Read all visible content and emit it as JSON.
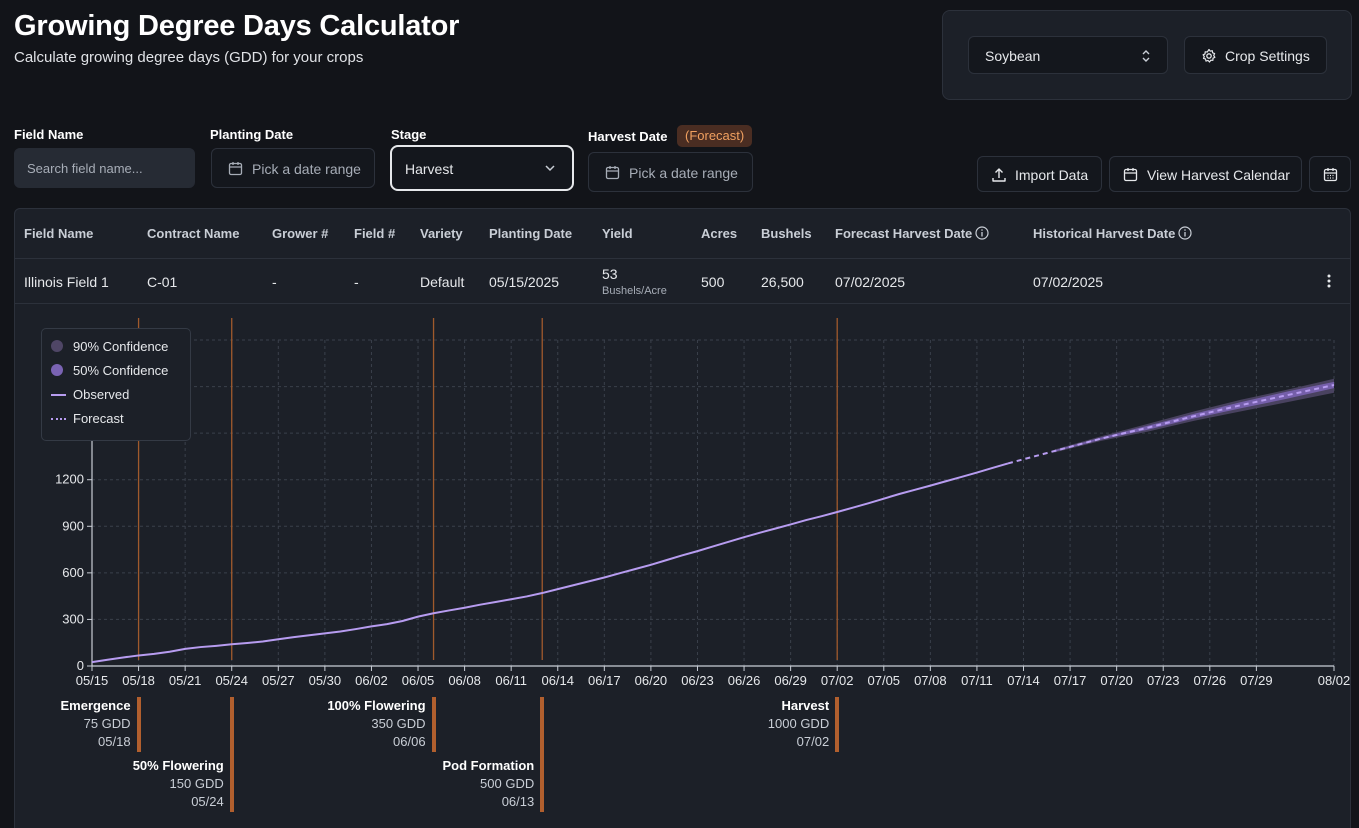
{
  "header": {
    "title": "Growing Degree Days Calculator",
    "subtitle": "Calculate growing degree days (GDD) for your crops"
  },
  "top_panel": {
    "crop": "Soybean",
    "crop_settings_label": "Crop Settings"
  },
  "filters": {
    "field_name_label": "Field Name",
    "field_name_placeholder": "Search field name...",
    "planting_date_label": "Planting Date",
    "planting_date_placeholder": "Pick a date range",
    "stage_label": "Stage",
    "stage_value": "Harvest",
    "harvest_date_label": "Harvest Date",
    "harvest_badge": "(Forecast)",
    "harvest_date_placeholder": "Pick a date range"
  },
  "actions": {
    "import_label": "Import Data",
    "calendar_label": "View Harvest Calendar"
  },
  "table": {
    "headers": [
      "Field Name",
      "Contract Name",
      "Grower #",
      "Field #",
      "Variety",
      "Planting Date",
      "Yield",
      "Acres",
      "Bushels",
      "Forecast Harvest Date",
      "Historical Harvest Date"
    ],
    "row": {
      "field_name": "Illinois Field 1",
      "contract_name": "C-01",
      "grower": "-",
      "field": "-",
      "variety": "Default",
      "planting_date": "05/15/2025",
      "yield_value": "53",
      "yield_unit": "Bushels/Acre",
      "acres": "500",
      "bushels": "26,500",
      "forecast_harvest_date": "07/02/2025",
      "historical_harvest_date": "07/02/2025"
    }
  },
  "legend": {
    "items": [
      {
        "label": "90% Confidence",
        "color": "#4f4666"
      },
      {
        "label": "50% Confidence",
        "color": "#7a63b3"
      },
      {
        "label": "Observed",
        "color": "#b79cf0"
      },
      {
        "label": "Forecast",
        "color": "#b79cf0"
      }
    ]
  },
  "chart_data": {
    "type": "line",
    "x_ticks": [
      "05/15",
      "05/18",
      "05/21",
      "05/24",
      "05/27",
      "05/30",
      "06/02",
      "06/05",
      "06/08",
      "06/11",
      "06/14",
      "06/17",
      "06/20",
      "06/23",
      "06/26",
      "06/29",
      "07/02",
      "07/05",
      "07/08",
      "07/11",
      "07/14",
      "07/17",
      "07/20",
      "07/23",
      "07/26",
      "07/29",
      "08/02"
    ],
    "y_ticks": [
      0,
      300,
      600,
      900,
      1200
    ],
    "ylim": [
      0,
      2100
    ],
    "grid": true,
    "series": [
      {
        "name": "Observed",
        "style": "solid",
        "x": [
          0,
          1,
          2,
          3,
          4,
          5,
          6,
          7,
          8,
          9,
          10,
          11,
          12,
          13,
          14,
          15,
          16,
          17,
          18,
          19,
          20,
          21,
          22,
          23,
          24,
          25,
          26,
          27,
          28,
          29,
          30,
          31,
          32,
          33,
          34,
          35,
          36,
          37,
          38,
          39,
          40,
          41,
          42,
          43,
          44,
          45,
          46,
          47,
          48,
          49,
          50,
          51,
          52,
          53,
          54,
          55,
          56,
          57,
          58,
          59
        ],
        "y": [
          25,
          40,
          55,
          68,
          78,
          92,
          110,
          122,
          130,
          140,
          148,
          158,
          172,
          186,
          198,
          210,
          222,
          238,
          255,
          270,
          290,
          318,
          340,
          358,
          375,
          395,
          412,
          430,
          448,
          470,
          495,
          520,
          545,
          570,
          598,
          625,
          652,
          682,
          712,
          740,
          770,
          800,
          830,
          858,
          885,
          912,
          940,
          965,
          992,
          1020,
          1048,
          1078,
          1108,
          1135,
          1162,
          1190,
          1218,
          1246,
          1276,
          1305
        ]
      },
      {
        "name": "Forecast",
        "style": "dashed",
        "x": [
          59,
          62,
          65,
          68,
          71,
          74,
          77,
          80
        ],
        "y": [
          1305,
          1385,
          1465,
          1535,
          1610,
          1680,
          1745,
          1810
        ]
      }
    ],
    "bands": [
      {
        "name": "90% Confidence",
        "x": [
          62,
          65,
          68,
          71,
          74,
          77,
          80
        ],
        "lower": [
          1375,
          1450,
          1510,
          1580,
          1640,
          1700,
          1760
        ],
        "upper": [
          1395,
          1480,
          1560,
          1640,
          1715,
          1780,
          1850
        ]
      },
      {
        "name": "50% Confidence",
        "x": [
          62,
          65,
          68,
          71,
          74,
          77,
          80
        ],
        "lower": [
          1380,
          1458,
          1522,
          1595,
          1660,
          1722,
          1790
        ],
        "upper": [
          1390,
          1472,
          1548,
          1625,
          1700,
          1768,
          1830
        ]
      }
    ],
    "milestones": [
      {
        "name": "Emergence",
        "gdd": "75 GDD",
        "date": "05/18",
        "x": 3
      },
      {
        "name": "50% Flowering",
        "gdd": "150 GDD",
        "date": "05/24",
        "x": 9
      },
      {
        "name": "100% Flowering",
        "gdd": "350 GDD",
        "date": "06/06",
        "x": 22
      },
      {
        "name": "Pod Formation",
        "gdd": "500 GDD",
        "date": "06/13",
        "x": 29
      },
      {
        "name": "Harvest",
        "gdd": "1000 GDD",
        "date": "07/02",
        "x": 48
      }
    ]
  }
}
